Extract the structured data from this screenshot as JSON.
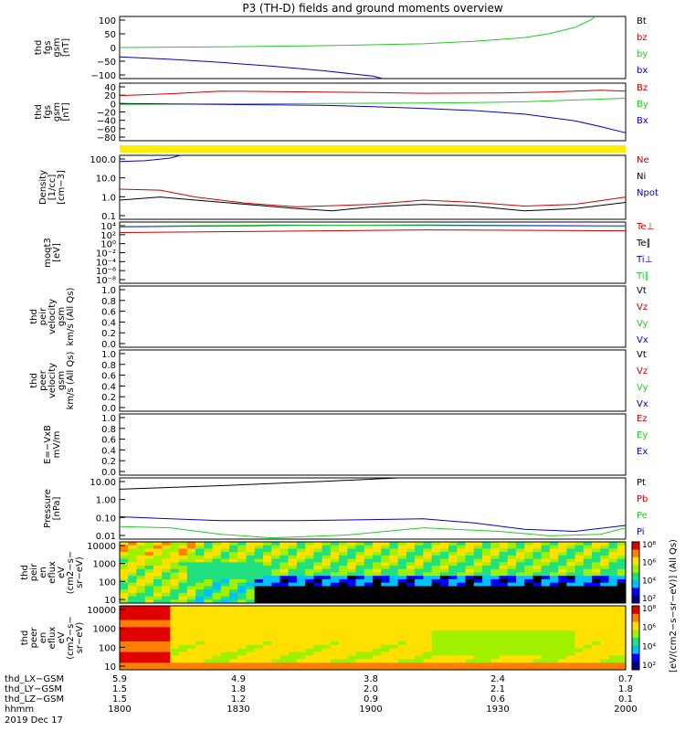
{
  "title": "P3 (TH-D) fields and ground moments overview",
  "colors": {
    "black": "#000000",
    "red": "#cc0000",
    "green": "#22cc22",
    "blue": "#0000cc",
    "yellow": "#ffee00"
  },
  "chart_data": [
    {
      "id": "fgs_gsm",
      "type": "line",
      "ylabel": [
        "thd",
        "fgs",
        "gsm",
        "[nT]"
      ],
      "yticks": [
        "100",
        "50",
        "0",
        "−50",
        "−100"
      ],
      "ylim": [
        -100,
        100
      ],
      "legend": [
        {
          "label": "Bt",
          "color": "black"
        },
        {
          "label": "bz",
          "color": "red"
        },
        {
          "label": "by",
          "color": "green"
        },
        {
          "label": "bx",
          "color": "blue"
        }
      ],
      "series": [
        {
          "name": "by",
          "color": "green",
          "x": [
            0,
            0.2,
            0.4,
            0.6,
            0.7,
            0.8,
            0.85,
            0.9,
            0.93,
            0.94
          ],
          "y": [
            0,
            2,
            6,
            12,
            20,
            32,
            45,
            65,
            88,
            100
          ]
        },
        {
          "name": "bx",
          "color": "blue",
          "x": [
            0,
            0.1,
            0.2,
            0.3,
            0.4,
            0.5,
            0.52
          ],
          "y": [
            -30,
            -38,
            -48,
            -60,
            -74,
            -92,
            -100
          ]
        }
      ]
    },
    {
      "id": "fgs_gsm2",
      "type": "line",
      "ylabel": [
        "thd",
        "fgs",
        "gsm",
        "[nT]"
      ],
      "yticks": [
        "40",
        "20",
        "0",
        "−20",
        "−40",
        "−60",
        "−80"
      ],
      "ylim": [
        -90,
        40
      ],
      "legend": [
        {
          "label": "Bz",
          "color": "red"
        },
        {
          "label": "By",
          "color": "green"
        },
        {
          "label": "Bx",
          "color": "blue"
        }
      ],
      "series": [
        {
          "name": "Bz",
          "color": "red",
          "x": [
            0,
            0.1,
            0.2,
            0.3,
            0.5,
            0.6,
            0.75,
            0.85,
            0.95,
            1
          ],
          "y": [
            12,
            16,
            22,
            21,
            19,
            17,
            18,
            20,
            24,
            22
          ]
        },
        {
          "name": "By",
          "color": "green",
          "x": [
            0,
            0.2,
            0.4,
            0.6,
            0.7,
            0.8,
            0.9,
            1
          ],
          "y": [
            -8,
            -7,
            -6,
            -5,
            -4,
            -2,
            2,
            6
          ]
        },
        {
          "name": "Bx",
          "color": "blue",
          "x": [
            0,
            0.2,
            0.4,
            0.5,
            0.6,
            0.7,
            0.8,
            0.9,
            0.95,
            1
          ],
          "y": [
            -6,
            -8,
            -10,
            -13,
            -17,
            -22,
            -30,
            -45,
            -58,
            -72
          ]
        }
      ]
    },
    {
      "id": "density",
      "type": "line",
      "log": true,
      "ylabel": [
        "Density",
        "[1/cc]",
        "[cm−3]"
      ],
      "yticks": [
        "100.0",
        "10.0",
        "1.0",
        "0.1"
      ],
      "ylim": [
        0.05,
        200
      ],
      "legend": [
        {
          "label": "Ne",
          "color": "red"
        },
        {
          "label": "Ni",
          "color": "black"
        },
        {
          "label": "Npot",
          "color": "blue"
        }
      ],
      "series": [
        {
          "name": "Ne",
          "color": "red",
          "x": [
            0,
            0.08,
            0.15,
            0.25,
            0.35,
            0.5,
            0.6,
            0.7,
            0.8,
            0.9,
            1
          ],
          "y": [
            2.5,
            2.2,
            0.9,
            0.4,
            0.25,
            0.35,
            0.6,
            0.45,
            0.28,
            0.35,
            0.9
          ]
        },
        {
          "name": "Ni",
          "color": "black",
          "x": [
            0,
            0.08,
            0.15,
            0.25,
            0.35,
            0.42,
            0.5,
            0.6,
            0.7,
            0.8,
            0.9,
            1
          ],
          "y": [
            0.6,
            0.9,
            0.6,
            0.35,
            0.2,
            0.15,
            0.25,
            0.35,
            0.28,
            0.15,
            0.2,
            0.45
          ]
        },
        {
          "name": "Npot",
          "color": "blue",
          "x": [
            0,
            0.05,
            0.1,
            0.12
          ],
          "y": [
            90,
            100,
            140,
            200
          ]
        }
      ]
    },
    {
      "id": "temp",
      "type": "line",
      "log": true,
      "ylabel": [
        "moqt3",
        "[eV]"
      ],
      "yticks": [
        "10⁴",
        "10²",
        "10⁰",
        "10⁻²",
        "10⁻⁴",
        "10⁻⁶",
        "10⁻⁸"
      ],
      "ylim": [
        -9,
        5
      ],
      "legend": [
        {
          "label": "Te⊥",
          "color": "red"
        },
        {
          "label": "Te∥",
          "color": "black"
        },
        {
          "label": "Ti⊥",
          "color": "blue"
        },
        {
          "label": "Ti∥",
          "color": "green"
        }
      ],
      "series": [
        {
          "name": "Te",
          "color": "red",
          "x": [
            0,
            0.3,
            0.6,
            1
          ],
          "y": [
            2.6,
            2.9,
            3.2,
            3.0
          ]
        },
        {
          "name": "Ti",
          "color": "blue",
          "x": [
            0,
            0.3,
            0.6,
            1
          ],
          "y": [
            3.9,
            4.2,
            4.3,
            4.1
          ]
        },
        {
          "name": "Tg",
          "color": "green",
          "x": [
            0,
            0.3,
            0.6,
            1
          ],
          "y": [
            4.0,
            4.3,
            4.2,
            4.0
          ]
        }
      ]
    },
    {
      "id": "peir_vel",
      "type": "line",
      "ylabel": [
        "thd",
        "peir",
        "velocity",
        "gsm",
        "km/s (All Qs)"
      ],
      "yticks": [
        "1.0",
        "0.8",
        "0.6",
        "0.4",
        "0.2",
        "0.0"
      ],
      "ylim": [
        0,
        1
      ],
      "legend": [
        {
          "label": "Vt",
          "color": "black"
        },
        {
          "label": "Vz",
          "color": "red"
        },
        {
          "label": "Vy",
          "color": "green"
        },
        {
          "label": "Vx",
          "color": "blue"
        }
      ],
      "series": []
    },
    {
      "id": "peer_vel",
      "type": "line",
      "ylabel": [
        "thd",
        "peer",
        "velocity",
        "gsm",
        "km/s (All Qs)"
      ],
      "yticks": [
        "1.0",
        "0.8",
        "0.6",
        "0.4",
        "0.2",
        "0.0"
      ],
      "ylim": [
        0,
        1
      ],
      "legend": [
        {
          "label": "Vt",
          "color": "black"
        },
        {
          "label": "Vz",
          "color": "red"
        },
        {
          "label": "Vy",
          "color": "green"
        },
        {
          "label": "Vx",
          "color": "blue"
        }
      ],
      "series": []
    },
    {
      "id": "efield",
      "type": "line",
      "ylabel": [
        "E=−VxB",
        "mV/m"
      ],
      "yticks": [
        "1.0",
        "0.8",
        "0.6",
        "0.4",
        "0.2",
        "0.0"
      ],
      "ylim": [
        0,
        1
      ],
      "legend": [
        {
          "label": "Ez",
          "color": "red"
        },
        {
          "label": "Ey",
          "color": "green"
        },
        {
          "label": "Ex",
          "color": "blue"
        }
      ],
      "series": []
    },
    {
      "id": "pressure",
      "type": "line",
      "log": true,
      "ylabel": [
        "Pressure",
        "[nPa]"
      ],
      "yticks": [
        "10.00",
        "1.00",
        "0.10",
        "0.01"
      ],
      "ylim": [
        0.005,
        30
      ],
      "legend": [
        {
          "label": "Pt",
          "color": "black"
        },
        {
          "label": "Pb",
          "color": "red"
        },
        {
          "label": "Pe",
          "color": "green"
        },
        {
          "label": "Pi",
          "color": "blue"
        }
      ],
      "series": [
        {
          "name": "Pt",
          "color": "black",
          "x": [
            0,
            0.2,
            0.4,
            0.55
          ],
          "y": [
            6,
            10,
            18,
            30
          ]
        },
        {
          "name": "Pi",
          "color": "blue",
          "x": [
            0,
            0.1,
            0.2,
            0.35,
            0.5,
            0.6,
            0.7,
            0.8,
            0.9,
            1
          ],
          "y": [
            0.12,
            0.09,
            0.07,
            0.07,
            0.08,
            0.09,
            0.05,
            0.02,
            0.015,
            0.035
          ]
        },
        {
          "name": "Pe",
          "color": "green",
          "x": [
            0,
            0.1,
            0.2,
            0.3,
            0.45,
            0.6,
            0.75,
            0.85,
            0.95,
            1
          ],
          "y": [
            0.03,
            0.025,
            0.01,
            0.006,
            0.009,
            0.025,
            0.015,
            0.008,
            0.01,
            0.025
          ]
        }
      ]
    },
    {
      "id": "peir_spec",
      "type": "heatmap",
      "ylabel": [
        "thd",
        "peir",
        "en",
        "eflux",
        "eV",
        "(cm2−s−",
        "sr−eV)"
      ],
      "yticks": [
        "10000",
        "1000",
        "100",
        "10"
      ]
    },
    {
      "id": "peer_spec",
      "type": "heatmap",
      "ylabel": [
        "thd",
        "peer",
        "en",
        "eflux",
        "eV",
        "(cm2−s−",
        "sr−eV)"
      ],
      "yticks": [
        "10000",
        "1000",
        "100",
        "10"
      ]
    }
  ],
  "colorbar": {
    "ticks": [
      "10⁸",
      "10⁶",
      "10⁴",
      "10²"
    ],
    "label": "[eV/(cm2−s−sr−eV)] (All Qs)"
  },
  "xaxis": {
    "rows": [
      {
        "label": "thd_LX−GSM",
        "values": [
          "5.9",
          "4.9",
          "3.8",
          "2.4",
          "0.7"
        ]
      },
      {
        "label": "thd_LY−GSM",
        "values": [
          "1.5",
          "1.8",
          "2.0",
          "2.1",
          "1.8"
        ]
      },
      {
        "label": "thd_LZ−GSM",
        "values": [
          "1.5",
          "1.2",
          "0.9",
          "0.6",
          "0.1"
        ]
      },
      {
        "label": "hhmm",
        "values": [
          "1800",
          "1830",
          "1900",
          "1930",
          "2000"
        ]
      }
    ],
    "date": "2019 Dec 17"
  }
}
